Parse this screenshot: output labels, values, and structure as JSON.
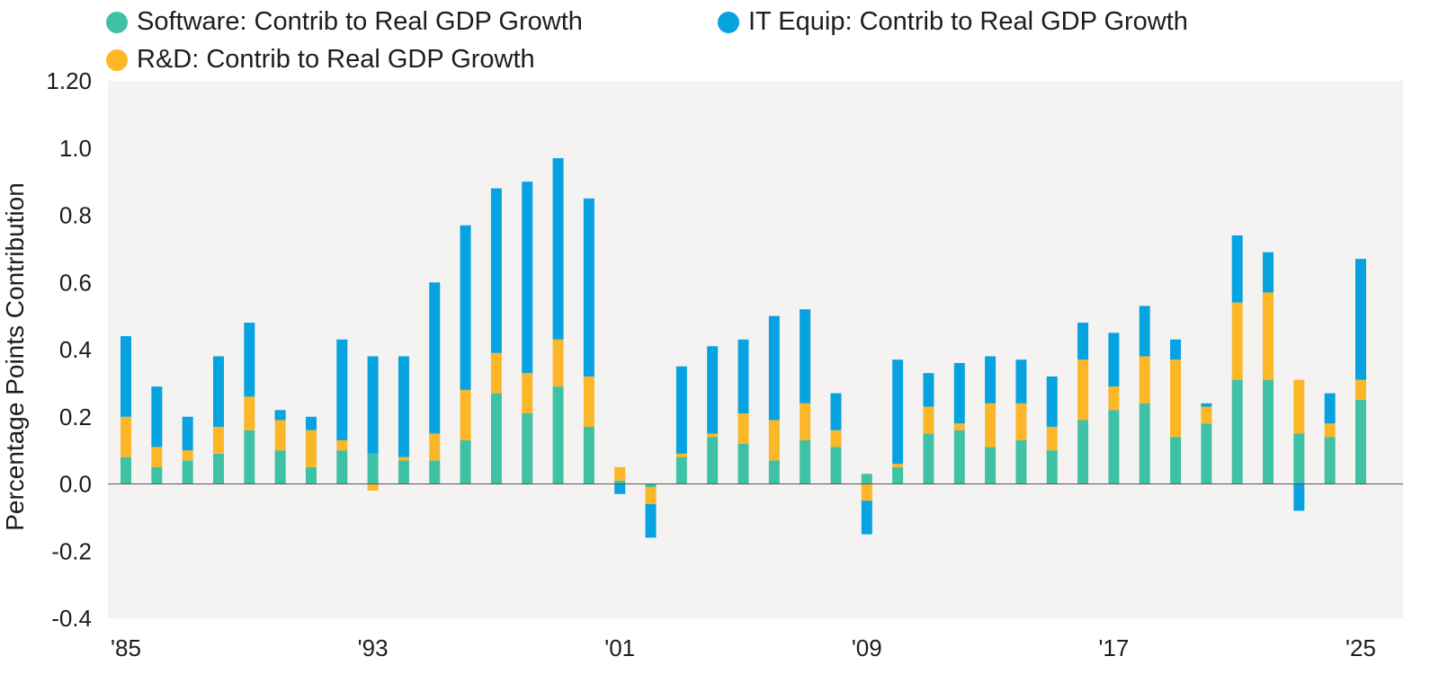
{
  "chart_data": {
    "type": "bar",
    "stacked": true,
    "title": "",
    "xlabel": "",
    "ylabel": "Percentage Points Contribution",
    "ylim": [
      -0.4,
      1.2
    ],
    "yticks": [
      -0.4,
      -0.2,
      0.0,
      0.2,
      0.4,
      0.6,
      0.8,
      1.0,
      1.2
    ],
    "ytick_labels": [
      "-0.4",
      "-0.2",
      "0.0",
      "0.2",
      "0.4",
      "0.6",
      "0.8",
      "1.0",
      "1.20"
    ],
    "xtick_labels": [
      "'85",
      "'93",
      "'01",
      "'09",
      "'17",
      "'25"
    ],
    "xtick_years": [
      1985,
      1993,
      2001,
      2009,
      2017,
      2025
    ],
    "legend_placement": "top",
    "background": "#f4f3f1",
    "categories": [
      1985,
      1986,
      1987,
      1988,
      1989,
      1990,
      1991,
      1992,
      1993,
      1994,
      1995,
      1996,
      1997,
      1998,
      1999,
      2000,
      2001,
      2002,
      2003,
      2004,
      2005,
      2006,
      2007,
      2008,
      2009,
      2010,
      2011,
      2012,
      2013,
      2014,
      2015,
      2016,
      2017,
      2018,
      2019,
      2020,
      2021,
      2022,
      2023,
      2024,
      2025
    ],
    "series": [
      {
        "name": "Software: Contrib to Real GDP Growth",
        "color": "#3fc1a5",
        "values": [
          0.08,
          0.05,
          0.07,
          0.09,
          0.16,
          0.1,
          0.05,
          0.1,
          0.09,
          0.07,
          0.07,
          0.13,
          0.27,
          0.21,
          0.29,
          0.17,
          0.01,
          -0.01,
          0.08,
          0.14,
          0.12,
          0.07,
          0.13,
          0.11,
          0.03,
          0.05,
          0.15,
          0.16,
          0.11,
          0.13,
          0.1,
          0.19,
          0.22,
          0.24,
          0.14,
          0.18,
          0.31,
          0.31,
          0.15,
          0.14,
          0.25
        ]
      },
      {
        "name": "R&D: Contrib to Real GDP Growth",
        "color": "#fbb727",
        "values": [
          0.12,
          0.06,
          0.03,
          0.08,
          0.1,
          0.09,
          0.11,
          0.03,
          -0.02,
          0.01,
          0.08,
          0.15,
          0.12,
          0.12,
          0.14,
          0.15,
          0.04,
          -0.05,
          0.01,
          0.01,
          0.09,
          0.12,
          0.11,
          0.05,
          -0.05,
          0.01,
          0.08,
          0.02,
          0.13,
          0.11,
          0.07,
          0.18,
          0.07,
          0.14,
          0.23,
          0.05,
          0.23,
          0.26,
          0.16,
          0.04,
          0.06
        ]
      },
      {
        "name": "IT Equip: Contrib to Real GDP Growth",
        "color": "#07a3e1",
        "values": [
          0.24,
          0.18,
          0.1,
          0.21,
          0.22,
          0.03,
          0.04,
          0.3,
          0.29,
          0.3,
          0.45,
          0.49,
          0.49,
          0.57,
          0.54,
          0.53,
          -0.03,
          -0.1,
          0.26,
          0.26,
          0.22,
          0.31,
          0.28,
          0.11,
          -0.1,
          0.31,
          0.1,
          0.18,
          0.14,
          0.13,
          0.15,
          0.11,
          0.16,
          0.15,
          0.06,
          0.01,
          0.2,
          0.12,
          -0.08,
          0.09,
          0.36
        ]
      }
    ]
  },
  "legend": [
    {
      "label": "Software: Contrib to Real GDP Growth",
      "color": "#3fc1a5"
    },
    {
      "label": "IT Equip: Contrib to Real GDP Growth",
      "color": "#07a3e1"
    },
    {
      "label": "R&D: Contrib to Real GDP Growth",
      "color": "#fbb727"
    }
  ]
}
